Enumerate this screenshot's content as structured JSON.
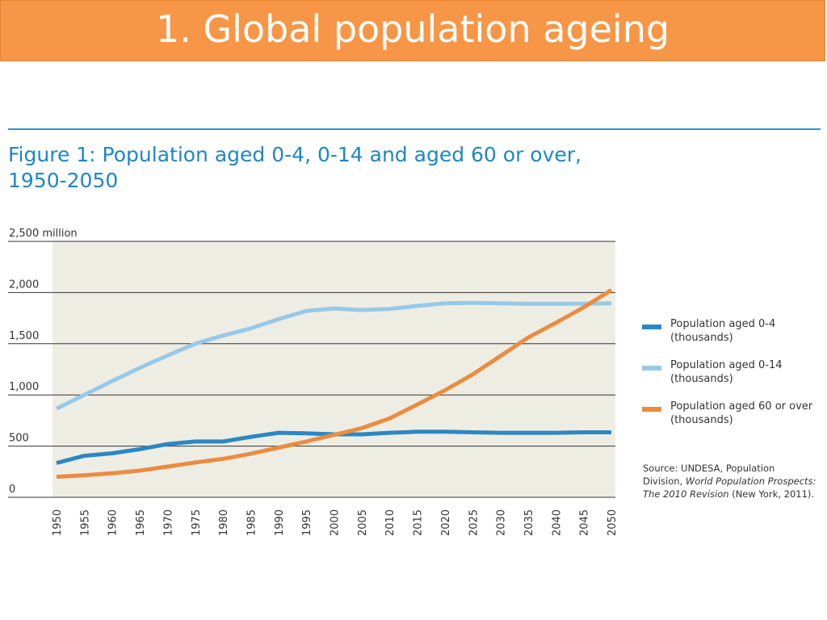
{
  "slide": {
    "title": "1. Global population ageing"
  },
  "colors": {
    "header_bg": "#f79646",
    "accent": "#1f86c2",
    "plot_bg": "#eeede4"
  },
  "chart_data": {
    "type": "line",
    "title": "Figure 1: Population aged 0-4, 0-14 and aged 60 or over, 1950-2050",
    "ylabel": "",
    "xlabel": "",
    "ylim": [
      0,
      2500
    ],
    "y_ticks": [
      {
        "value": 0,
        "label": "0"
      },
      {
        "value": 500,
        "label": "500"
      },
      {
        "value": 1000,
        "label": "1,000"
      },
      {
        "value": 1500,
        "label": "1,500"
      },
      {
        "value": 2000,
        "label": "2,000"
      },
      {
        "value": 2500,
        "label": "2,500 million"
      }
    ],
    "grid": true,
    "x": [
      1950,
      1955,
      1960,
      1965,
      1970,
      1975,
      1980,
      1985,
      1990,
      1995,
      2000,
      2005,
      2010,
      2015,
      2020,
      2025,
      2030,
      2035,
      2040,
      2045,
      2050
    ],
    "series": [
      {
        "name": "Population aged 0-4 (thousands)",
        "color": "#2b87c4",
        "values": [
          335,
          405,
          430,
          470,
          520,
          545,
          545,
          590,
          630,
          625,
          615,
          615,
          630,
          640,
          640,
          635,
          630,
          630,
          630,
          635,
          635
        ]
      },
      {
        "name": "Population aged 0-14 (thousands)",
        "color": "#96c9e8",
        "values": [
          865,
          1000,
          1135,
          1265,
          1385,
          1500,
          1580,
          1650,
          1740,
          1820,
          1845,
          1830,
          1840,
          1870,
          1895,
          1900,
          1895,
          1890,
          1890,
          1890,
          1895
        ]
      },
      {
        "name": "Population aged 60 or over (thousands)",
        "color": "#ea8c3f",
        "values": [
          200,
          215,
          235,
          260,
          300,
          340,
          375,
          425,
          485,
          545,
          610,
          675,
          770,
          905,
          1045,
          1200,
          1380,
          1560,
          1705,
          1855,
          2025
        ]
      }
    ],
    "legend": {
      "position": "right",
      "entries": [
        {
          "line1": "Population aged 0-4",
          "line2": "(thousands)",
          "color": "#2b87c4"
        },
        {
          "line1": "Population aged 0-14",
          "line2": "(thousands)",
          "color": "#96c9e8"
        },
        {
          "line1": "Population aged 60 or over",
          "line2": "(thousands)",
          "color": "#ea8c3f"
        }
      ]
    },
    "source": {
      "line1": "Source: UNDESA, Population",
      "line2_a": "Division, ",
      "line2_b": "World Population Prospects:",
      "line3_a": "The 2010 Revision",
      "line3_b": " (New York, 2011)."
    }
  }
}
